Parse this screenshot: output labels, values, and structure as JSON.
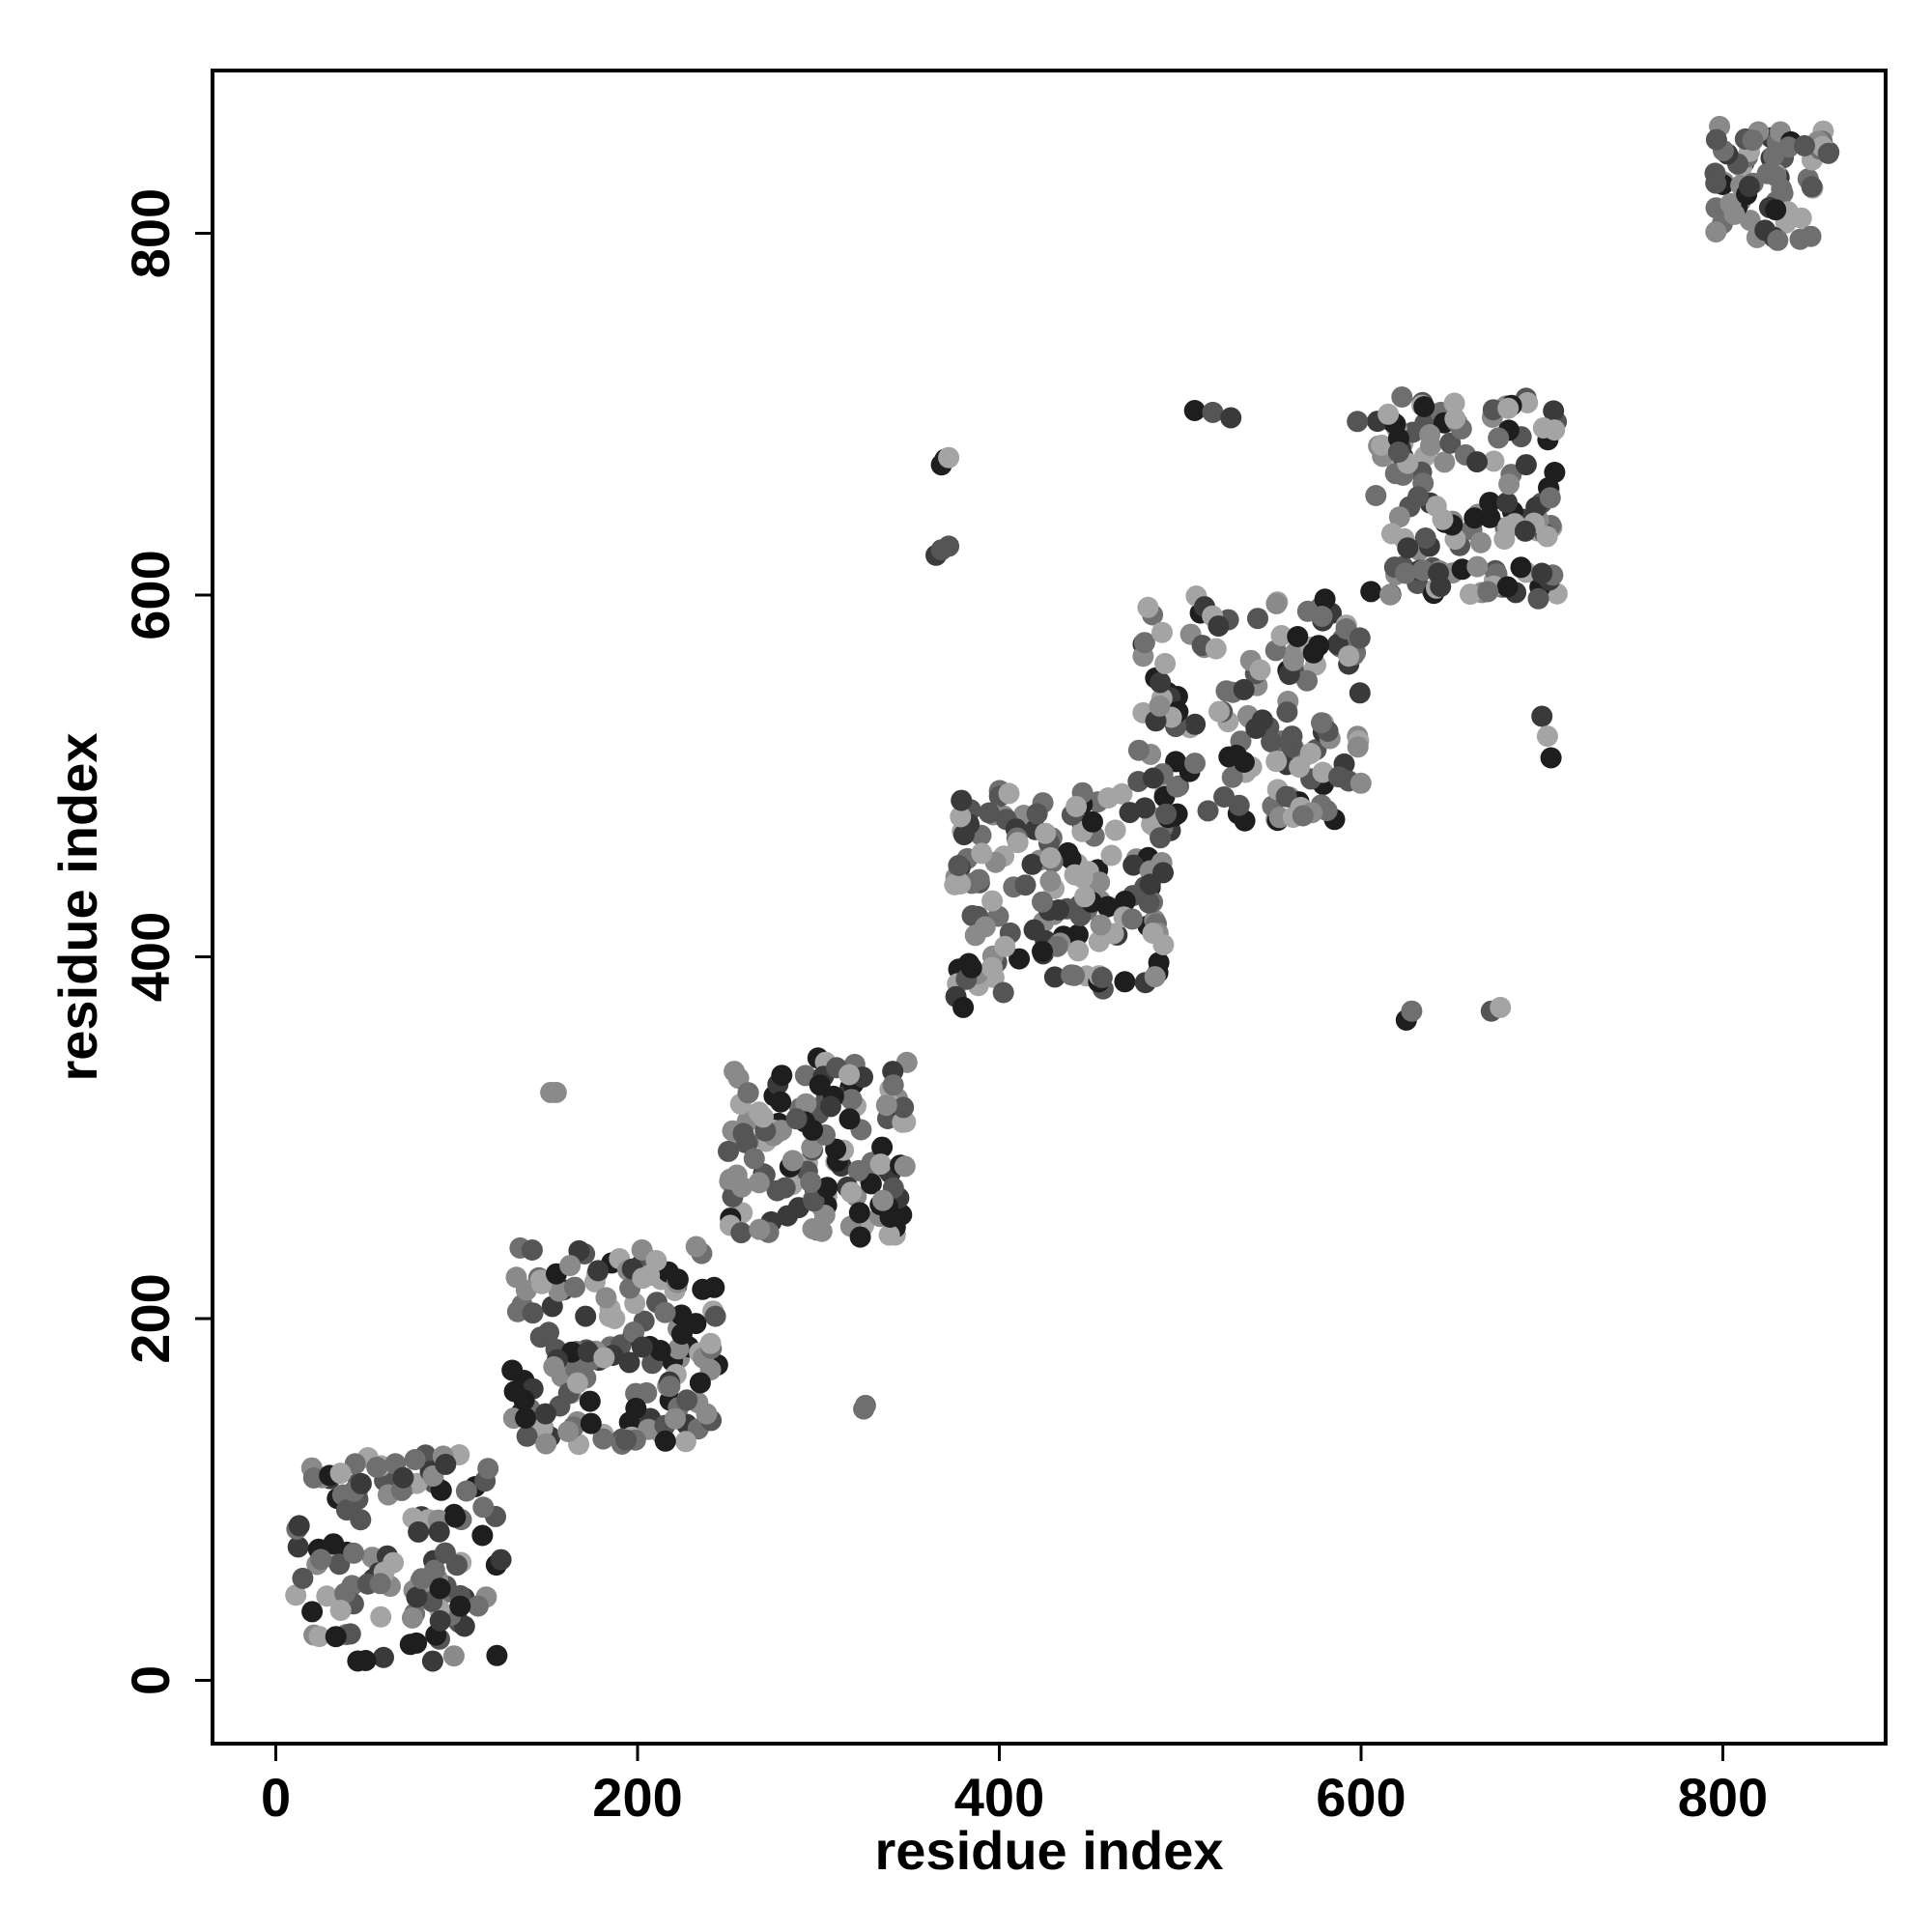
{
  "chart_data": {
    "type": "scatter",
    "title": "",
    "xlabel": "residue index",
    "ylabel": "residue index",
    "xlim": [
      -35,
      890
    ],
    "ylim": [
      -35,
      890
    ],
    "x_ticks": [
      0,
      200,
      400,
      600,
      800
    ],
    "y_ticks": [
      0,
      200,
      400,
      600,
      800
    ],
    "grid": false,
    "legend": "none",
    "point_colors": [
      "#1e1e1e",
      "#3a3a3a",
      "#555555",
      "#6f6f6f",
      "#8a8a8a",
      "#a4a4a4"
    ],
    "clusters": [
      {
        "x_range": [
          10,
          125
        ],
        "y_range": [
          10,
          125
        ],
        "count": 130
      },
      {
        "x_range": [
          130,
          245
        ],
        "y_range": [
          130,
          240
        ],
        "count": 150
      },
      {
        "x_range": [
          250,
          350
        ],
        "y_range": [
          245,
          345
        ],
        "count": 140
      },
      {
        "x_range": [
          375,
          495
        ],
        "y_range": [
          380,
          495
        ],
        "count": 160
      },
      {
        "x_range": [
          475,
          600
        ],
        "y_range": [
          475,
          600
        ],
        "count": 150
      },
      {
        "x_range": [
          605,
          710
        ],
        "y_range": [
          600,
          710
        ],
        "count": 140
      },
      {
        "x_range": [
          795,
          860
        ],
        "y_range": [
          795,
          860
        ],
        "count": 70
      }
    ],
    "points": [
      [
        152,
        325
      ],
      [
        155,
        325
      ],
      [
        325,
        150
      ],
      [
        326,
        152
      ],
      [
        368,
        672
      ],
      [
        370,
        675
      ],
      [
        372,
        676
      ],
      [
        365,
        622
      ],
      [
        368,
        625
      ],
      [
        372,
        627
      ],
      [
        376,
        378
      ],
      [
        380,
        372
      ],
      [
        508,
        702
      ],
      [
        518,
        701
      ],
      [
        528,
        698
      ],
      [
        598,
        696
      ],
      [
        615,
        700
      ],
      [
        625,
        365
      ],
      [
        628,
        370
      ],
      [
        672,
        370
      ],
      [
        677,
        372
      ],
      [
        700,
        533
      ],
      [
        703,
        522
      ],
      [
        705,
        510
      ],
      [
        698,
        598
      ],
      [
        700,
        612
      ]
    ]
  }
}
